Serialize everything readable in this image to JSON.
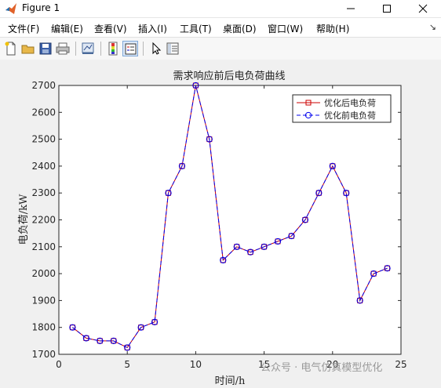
{
  "window": {
    "title": "Figure 1"
  },
  "menu": {
    "items": [
      {
        "label": "文件(F)"
      },
      {
        "label": "编辑(E)"
      },
      {
        "label": "查看(V)"
      },
      {
        "label": "插入(I)"
      },
      {
        "label": "工具(T)"
      },
      {
        "label": "桌面(D)"
      },
      {
        "label": "窗口(W)"
      },
      {
        "label": "帮助(H)"
      }
    ],
    "overflow_icon": "chevron-icon"
  },
  "toolbar": {
    "icons": [
      "new-figure-icon",
      "open-file-icon",
      "save-icon",
      "print-icon",
      "link-plot-icon",
      "colorbar-icon",
      "legend-icon",
      "pointer-icon",
      "property-editor-icon"
    ]
  },
  "watermark": "公众号 · 电气仿真模型优化",
  "chart_data": {
    "type": "line",
    "title": "需求响应前后电负荷曲线",
    "xlabel": "时间/h",
    "ylabel": "电负荷/kW",
    "xlim": [
      0,
      25
    ],
    "ylim": [
      1700,
      2700
    ],
    "x_ticks": [
      0,
      5,
      10,
      15,
      20,
      25
    ],
    "y_ticks": [
      1700,
      1800,
      1900,
      2000,
      2100,
      2200,
      2300,
      2400,
      2500,
      2600,
      2700
    ],
    "x": [
      1,
      2,
      3,
      4,
      5,
      6,
      7,
      8,
      9,
      10,
      11,
      12,
      13,
      14,
      15,
      16,
      17,
      18,
      19,
      20,
      21,
      22,
      23,
      24
    ],
    "series": [
      {
        "name": "优化后电负荷",
        "color": "#cc0000",
        "marker": "square",
        "line": "solid",
        "values": [
          1800,
          1760,
          1750,
          1750,
          1725,
          1800,
          1820,
          2300,
          2400,
          2700,
          2500,
          2050,
          2100,
          2080,
          2100,
          2120,
          2140,
          2200,
          2300,
          2400,
          2300,
          1900,
          2000,
          2020
        ]
      },
      {
        "name": "优化前电负荷",
        "color": "#0000ee",
        "marker": "circle",
        "line": "dashed",
        "values": [
          1800,
          1760,
          1750,
          1750,
          1725,
          1800,
          1820,
          2300,
          2400,
          2700,
          2500,
          2050,
          2100,
          2080,
          2100,
          2120,
          2140,
          2200,
          2300,
          2400,
          2300,
          1900,
          2000,
          2020
        ]
      }
    ],
    "legend": "top-right",
    "grid": false
  }
}
